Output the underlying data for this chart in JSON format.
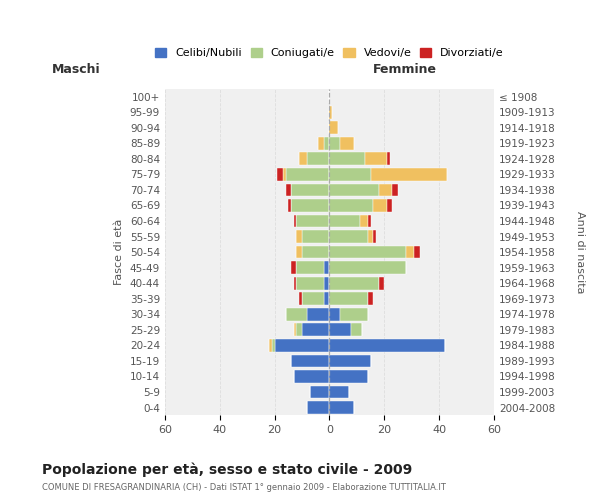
{
  "age_groups": [
    "0-4",
    "5-9",
    "10-14",
    "15-19",
    "20-24",
    "25-29",
    "30-34",
    "35-39",
    "40-44",
    "45-49",
    "50-54",
    "55-59",
    "60-64",
    "65-69",
    "70-74",
    "75-79",
    "80-84",
    "85-89",
    "90-94",
    "95-99",
    "100+"
  ],
  "birth_years": [
    "2004-2008",
    "1999-2003",
    "1994-1998",
    "1989-1993",
    "1984-1988",
    "1979-1983",
    "1974-1978",
    "1969-1973",
    "1964-1968",
    "1959-1963",
    "1954-1958",
    "1949-1953",
    "1944-1948",
    "1939-1943",
    "1934-1938",
    "1929-1933",
    "1924-1928",
    "1919-1923",
    "1914-1918",
    "1909-1913",
    "≤ 1908"
  ],
  "males": {
    "celibi": [
      8,
      7,
      13,
      14,
      20,
      10,
      8,
      2,
      2,
      2,
      0,
      0,
      0,
      0,
      0,
      0,
      0,
      0,
      0,
      0,
      0
    ],
    "coniugati": [
      0,
      0,
      0,
      0,
      1,
      2,
      8,
      8,
      10,
      10,
      10,
      10,
      12,
      14,
      14,
      16,
      8,
      2,
      0,
      0,
      0
    ],
    "vedovi": [
      0,
      0,
      0,
      0,
      1,
      1,
      0,
      0,
      0,
      0,
      2,
      2,
      0,
      0,
      0,
      1,
      3,
      2,
      0,
      0,
      0
    ],
    "divorziati": [
      0,
      0,
      0,
      0,
      0,
      0,
      0,
      1,
      1,
      2,
      0,
      0,
      1,
      1,
      2,
      2,
      0,
      0,
      0,
      0,
      0
    ]
  },
  "females": {
    "nubili": [
      9,
      7,
      14,
      15,
      42,
      8,
      4,
      0,
      0,
      0,
      0,
      0,
      0,
      0,
      0,
      0,
      0,
      0,
      0,
      0,
      0
    ],
    "coniugate": [
      0,
      0,
      0,
      0,
      0,
      4,
      10,
      14,
      18,
      28,
      28,
      14,
      11,
      16,
      18,
      15,
      13,
      4,
      0,
      0,
      0
    ],
    "vedove": [
      0,
      0,
      0,
      0,
      0,
      0,
      0,
      0,
      0,
      0,
      3,
      2,
      3,
      5,
      5,
      28,
      8,
      5,
      3,
      1,
      0
    ],
    "divorziate": [
      0,
      0,
      0,
      0,
      0,
      0,
      0,
      2,
      2,
      0,
      2,
      1,
      1,
      2,
      2,
      0,
      1,
      0,
      0,
      0,
      0
    ]
  },
  "colors": {
    "celibi": "#4472C4",
    "coniugati": "#AECF8B",
    "vedovi": "#F0C060",
    "divorziati": "#CC2222"
  },
  "title": "Popolazione per età, sesso e stato civile - 2009",
  "subtitle": "COMUNE DI FRESAGRANDINARIA (CH) - Dati ISTAT 1° gennaio 2009 - Elaborazione TUTTITALIA.IT",
  "xlabel_left": "Maschi",
  "xlabel_right": "Femmine",
  "ylabel_left": "Fasce di età",
  "ylabel_right": "Anni di nascita",
  "xlim": 60,
  "bg_color": "#FFFFFF",
  "plot_bg": "#F0F0F0",
  "grid_color": "#DDDDDD"
}
